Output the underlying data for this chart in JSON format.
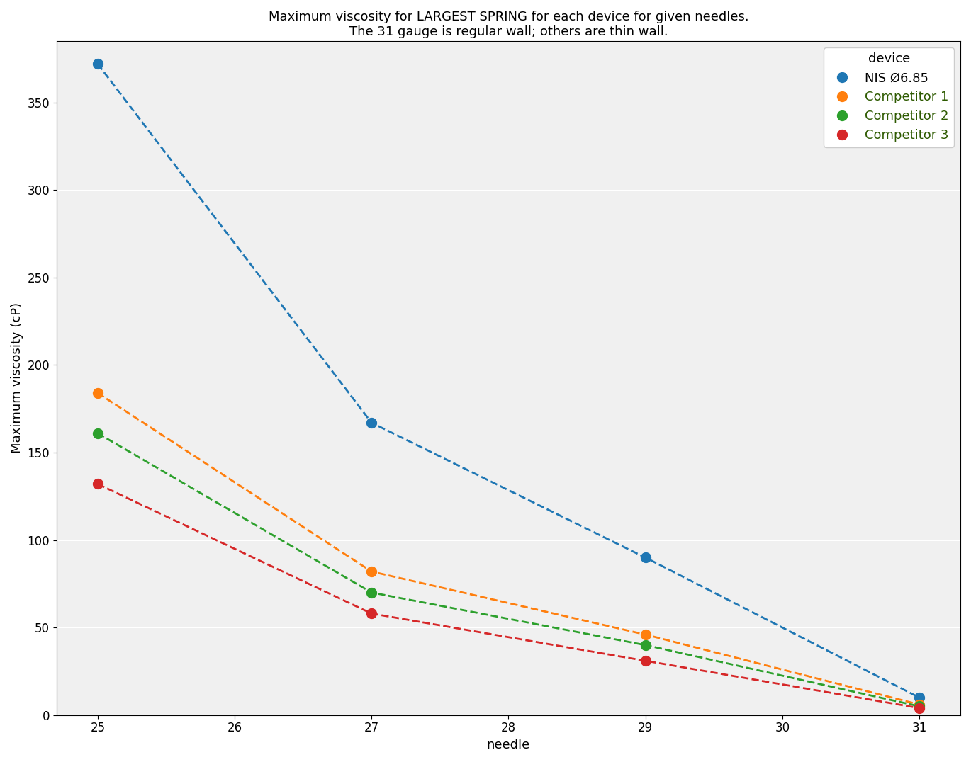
{
  "title": "Maximum viscosity for LARGEST SPRING for each device for given needles.\nThe 31 gauge is regular wall; others are thin wall.",
  "xlabel": "needle",
  "ylabel": "Maximum viscosity (cP)",
  "legend_title": "device",
  "series": [
    {
      "label": "NIS Ø6.85",
      "color": "#1f77b4",
      "x": [
        25,
        27,
        29,
        31
      ],
      "y": [
        372,
        167,
        90,
        10
      ],
      "label_color": "#000000"
    },
    {
      "label": "Competitor 1",
      "color": "#ff7f0e",
      "x": [
        25,
        27,
        29,
        31
      ],
      "y": [
        184,
        82,
        46,
        6
      ],
      "label_color": "#2d5a00"
    },
    {
      "label": "Competitor 2",
      "color": "#2ca02c",
      "x": [
        25,
        27,
        29,
        31
      ],
      "y": [
        161,
        70,
        40,
        5
      ],
      "label_color": "#2d5a00"
    },
    {
      "label": "Competitor 3",
      "color": "#d62728",
      "x": [
        25,
        27,
        29,
        31
      ],
      "y": [
        132,
        58,
        31,
        4
      ],
      "label_color": "#2d5a00"
    }
  ],
  "xlim": [
    24.7,
    31.3
  ],
  "ylim": [
    0,
    385
  ],
  "xticks": [
    25,
    26,
    27,
    28,
    29,
    30,
    31
  ],
  "yticks": [
    0,
    50,
    100,
    150,
    200,
    250,
    300,
    350
  ],
  "figsize": [
    13.7,
    10.76
  ],
  "dpi": 100,
  "title_fontsize": 13,
  "axis_label_fontsize": 13,
  "tick_fontsize": 12,
  "legend_fontsize": 13,
  "marker_size": 10,
  "linewidth": 2.0,
  "legend_title_color": "#000000",
  "background_color": "#f0f0f0"
}
